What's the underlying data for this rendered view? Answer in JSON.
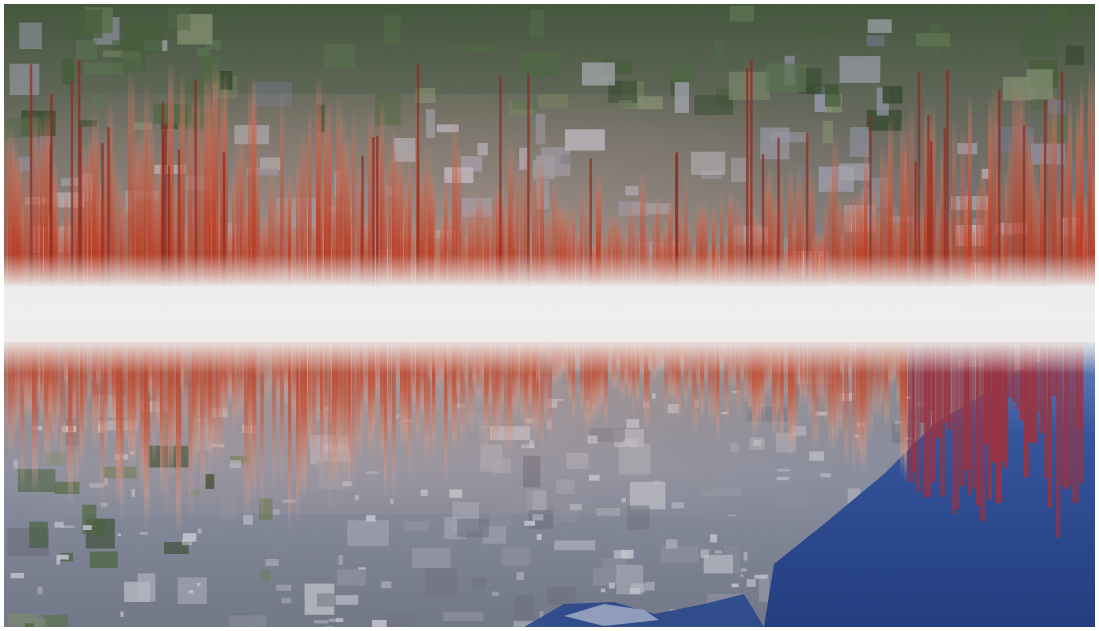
{
  "image": {
    "subject": "satellite-city-audio-waveform",
    "colors": {
      "farmland": "#4a5e3e",
      "urban": "#8a8e9c",
      "urban_light": "#c9cbd4",
      "red": "#c2361c",
      "red_dark": "#8e1f12",
      "pink": "#e7a58f",
      "white_band": "#f5f3f1",
      "lake": "#1b3d8a",
      "lake_light": "#5a7fbf"
    }
  }
}
